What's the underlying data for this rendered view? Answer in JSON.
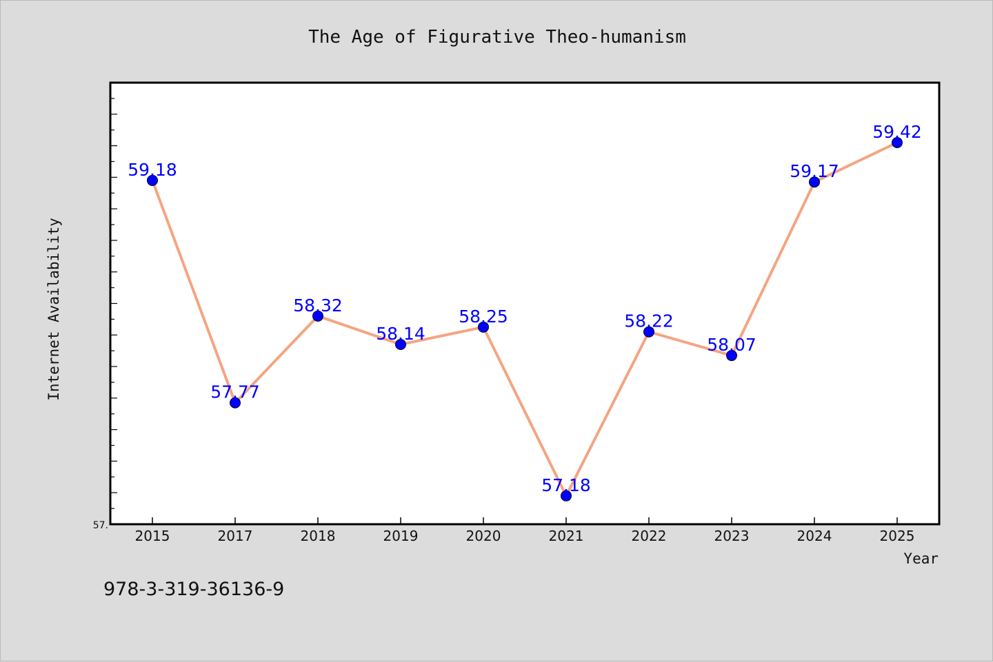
{
  "page": {
    "footer_code": "978-3-319-36136-9"
  },
  "chart_data": {
    "type": "line",
    "title": "The Age of Figurative Theo-humanism",
    "xlabel": "Year",
    "ylabel": "Internet Availability",
    "ylim": [
      57.0,
      59.8
    ],
    "y_tick_label": "57.",
    "grid": false,
    "x": [
      "2015",
      "2017",
      "2018",
      "2019",
      "2020",
      "2021",
      "2022",
      "2023",
      "2024",
      "2025"
    ],
    "series": [
      {
        "values": [
          59.18,
          57.77,
          58.32,
          58.14,
          58.25,
          57.18,
          58.22,
          58.07,
          59.17,
          59.42
        ],
        "data_labels": [
          "59.18",
          "57.77",
          "58.32",
          "58.14",
          "58.25",
          "57.18",
          "58.22",
          "58.07",
          "59.17",
          "59.42"
        ],
        "line_color": "#f4a582",
        "marker_color": "#0000ff"
      }
    ],
    "colors": {
      "plot_background": "#ffffff",
      "page_background": "#dcdcdc",
      "data_label_color": "#0000ff"
    }
  }
}
